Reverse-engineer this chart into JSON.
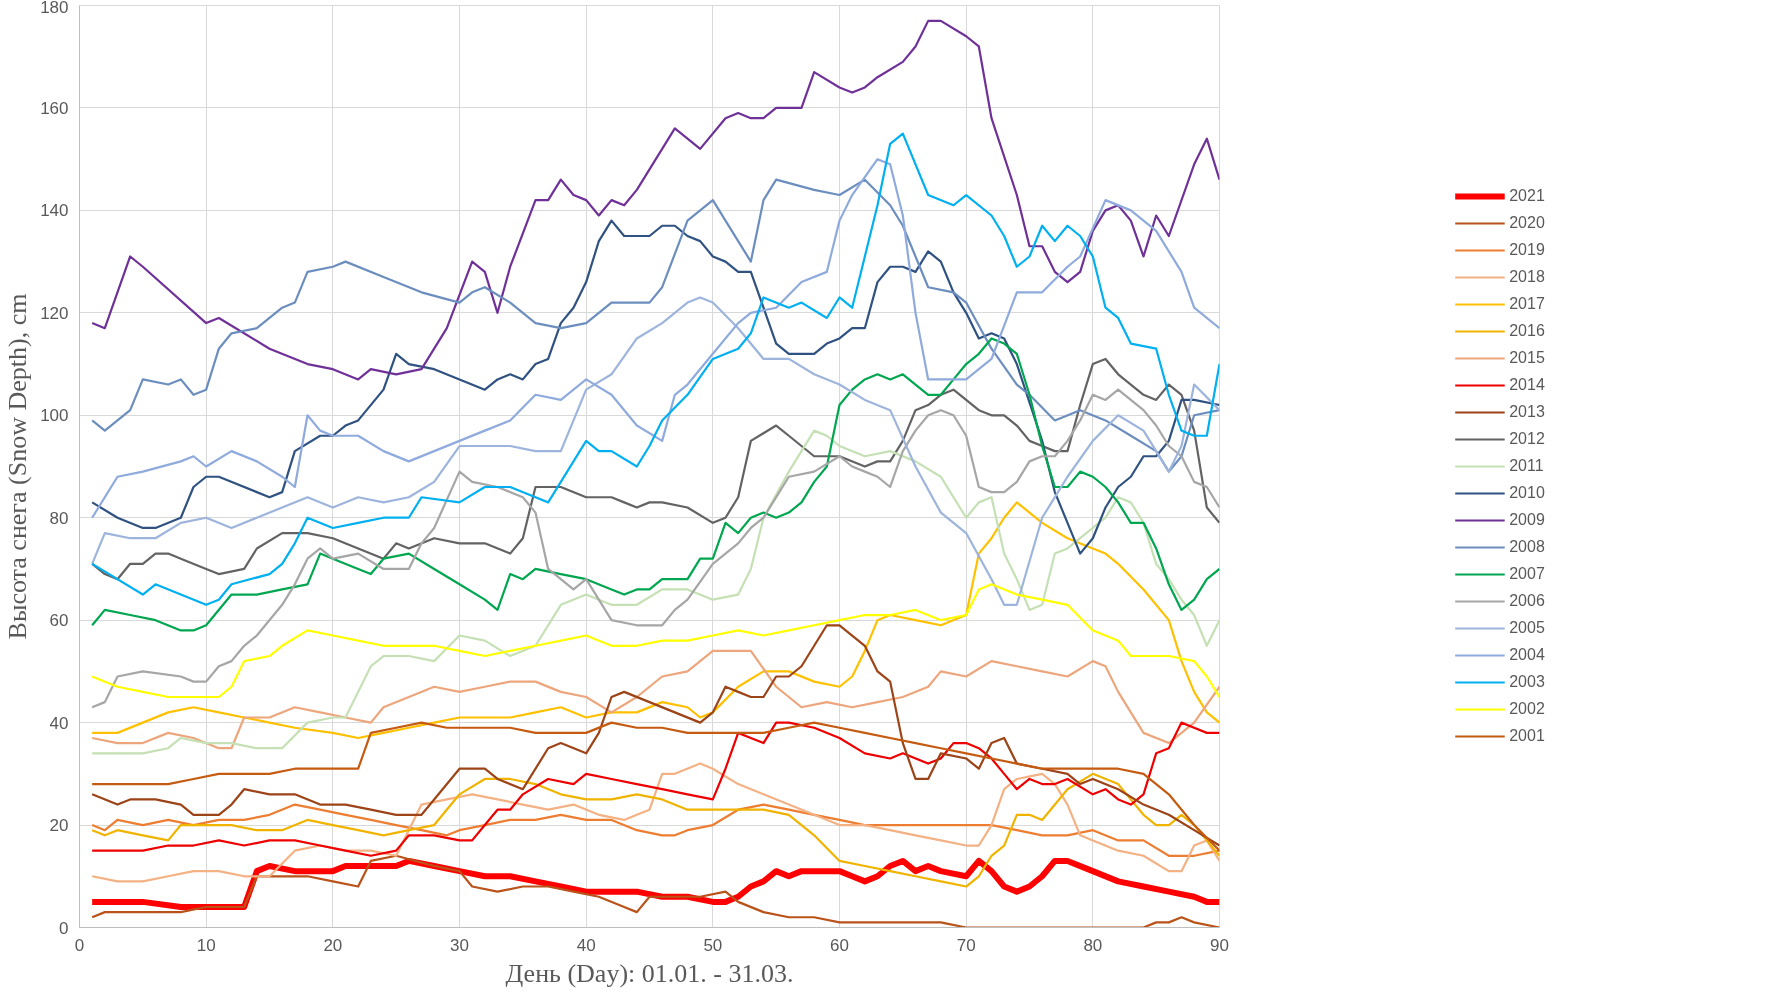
{
  "chart_data": {
    "type": "line",
    "xlabel": "День (Day): 01.01. - 31.03.",
    "ylabel": "Высота снега (Snow Depth), cm",
    "xlim": [
      0,
      90
    ],
    "ylim": [
      0,
      180
    ],
    "xticks": [
      0,
      10,
      20,
      30,
      40,
      50,
      60,
      70,
      80,
      90
    ],
    "yticks": [
      0,
      20,
      40,
      60,
      80,
      100,
      120,
      140,
      160,
      180
    ],
    "grid": true,
    "legend": "right",
    "series": [
      {
        "name": "2021",
        "color": "#ff0000",
        "x": [
          1,
          5,
          8,
          10,
          12,
          13,
          14,
          15,
          17,
          19,
          20,
          21,
          23,
          25,
          26,
          28,
          30,
          32,
          34,
          36,
          38,
          40,
          42,
          44,
          46,
          48,
          50,
          51,
          52,
          53,
          54,
          55,
          56,
          57,
          58,
          59,
          60,
          61,
          62,
          63,
          64,
          65,
          66,
          67,
          68,
          70,
          71,
          72,
          73,
          74,
          75,
          76,
          77,
          78,
          80,
          82,
          84,
          86,
          88,
          89,
          90
        ],
        "values": [
          5,
          5,
          4,
          4,
          4,
          4,
          11,
          12,
          11,
          11,
          11,
          12,
          12,
          12,
          13,
          12,
          11,
          10,
          10,
          9,
          8,
          7,
          7,
          7,
          6,
          6,
          5,
          5,
          6,
          8,
          9,
          11,
          10,
          11,
          11,
          11,
          11,
          10,
          9,
          10,
          12,
          13,
          11,
          12,
          11,
          10,
          13,
          11,
          8,
          7,
          8,
          10,
          13,
          13,
          11,
          9,
          8,
          7,
          6,
          5,
          5
        ]
      },
      {
        "name": "2020",
        "color": "#b9531a",
        "x": [
          1,
          2,
          4,
          6,
          8,
          10,
          12,
          13,
          14,
          16,
          18,
          20,
          22,
          23,
          25,
          28,
          30,
          31,
          33,
          35,
          37,
          39,
          41,
          43,
          44,
          45,
          47,
          49,
          51,
          52,
          54,
          56,
          58,
          60,
          62,
          64,
          66,
          68,
          70,
          74,
          78,
          82,
          84,
          85,
          86,
          87,
          88,
          90
        ],
        "values": [
          2,
          3,
          3,
          3,
          3,
          4,
          4,
          4,
          10,
          10,
          10,
          9,
          8,
          13,
          14,
          12,
          11,
          8,
          7,
          8,
          8,
          7,
          6,
          4,
          3,
          6,
          6,
          6,
          7,
          5,
          3,
          2,
          2,
          1,
          1,
          1,
          1,
          1,
          0,
          0,
          0,
          0,
          0,
          1,
          1,
          2,
          1,
          0
        ]
      },
      {
        "name": "2019",
        "color": "#ed7d31",
        "x": [
          1,
          2,
          3,
          5,
          7,
          9,
          11,
          13,
          15,
          17,
          19,
          21,
          23,
          25,
          27,
          29,
          30,
          32,
          34,
          36,
          38,
          40,
          42,
          44,
          46,
          47,
          48,
          50,
          52,
          54,
          56,
          58,
          60,
          62,
          64,
          66,
          68,
          70,
          72,
          74,
          76,
          78,
          80,
          82,
          84,
          86,
          88,
          90
        ],
        "values": [
          20,
          19,
          21,
          20,
          21,
          20,
          21,
          21,
          22,
          24,
          23,
          22,
          21,
          20,
          19,
          18,
          19,
          20,
          21,
          21,
          22,
          21,
          21,
          19,
          18,
          18,
          19,
          20,
          23,
          24,
          23,
          22,
          21,
          20,
          20,
          20,
          20,
          20,
          20,
          19,
          18,
          18,
          19,
          17,
          17,
          14,
          14,
          15
        ]
      },
      {
        "name": "2018",
        "color": "#f4b183",
        "x": [
          1,
          3,
          5,
          7,
          9,
          11,
          13,
          15,
          17,
          19,
          21,
          23,
          25,
          27,
          29,
          31,
          33,
          35,
          37,
          39,
          41,
          43,
          44,
          45,
          46,
          47,
          49,
          50,
          52,
          54,
          56,
          58,
          60,
          62,
          64,
          66,
          68,
          70,
          71,
          72,
          73,
          74,
          76,
          77,
          78,
          79,
          80,
          82,
          84,
          86,
          87,
          88,
          89,
          90
        ],
        "values": [
          10,
          9,
          9,
          10,
          11,
          11,
          10,
          10,
          15,
          16,
          15,
          15,
          14,
          24,
          25,
          26,
          25,
          24,
          23,
          24,
          22,
          21,
          22,
          23,
          30,
          30,
          32,
          31,
          28,
          26,
          24,
          22,
          20,
          20,
          19,
          18,
          17,
          16,
          16,
          20,
          27,
          29,
          30,
          28,
          24,
          18,
          17,
          15,
          14,
          11,
          11,
          16,
          17,
          13
        ]
      },
      {
        "name": "2017",
        "color": "#ffc000",
        "x": [
          1,
          3,
          5,
          7,
          9,
          11,
          13,
          15,
          17,
          20,
          22,
          24,
          26,
          28,
          30,
          32,
          34,
          36,
          38,
          40,
          42,
          44,
          46,
          48,
          49,
          50,
          52,
          54,
          56,
          58,
          60,
          61,
          62,
          63,
          64,
          66,
          68,
          70,
          71,
          72,
          73,
          74,
          75,
          76,
          78,
          80,
          81,
          82,
          84,
          86,
          87,
          88,
          89,
          90
        ],
        "values": [
          38,
          38,
          40,
          42,
          43,
          42,
          41,
          40,
          39,
          38,
          37,
          38,
          39,
          40,
          41,
          41,
          41,
          42,
          43,
          41,
          42,
          42,
          44,
          43,
          41,
          42,
          47,
          50,
          50,
          48,
          47,
          49,
          54,
          60,
          61,
          60,
          59,
          61,
          73,
          76,
          80,
          83,
          81,
          79,
          76,
          74,
          73,
          71,
          66,
          60,
          52,
          46,
          42,
          40
        ]
      },
      {
        "name": "2016",
        "color": "#f0b400",
        "x": [
          1,
          2,
          3,
          5,
          7,
          8,
          10,
          12,
          14,
          16,
          18,
          20,
          22,
          24,
          26,
          28,
          30,
          32,
          34,
          36,
          38,
          40,
          42,
          44,
          46,
          48,
          50,
          52,
          54,
          56,
          58,
          60,
          62,
          64,
          66,
          68,
          70,
          71,
          72,
          73,
          74,
          75,
          76,
          78,
          80,
          82,
          84,
          85,
          86,
          87,
          88,
          90
        ],
        "values": [
          19,
          18,
          19,
          18,
          17,
          20,
          20,
          20,
          19,
          19,
          21,
          20,
          19,
          18,
          19,
          20,
          26,
          29,
          29,
          28,
          26,
          25,
          25,
          26,
          25,
          23,
          23,
          23,
          23,
          22,
          18,
          13,
          12,
          11,
          10,
          9,
          8,
          10,
          14,
          16,
          22,
          22,
          21,
          27,
          30,
          28,
          22,
          20,
          20,
          22,
          20,
          14
        ]
      },
      {
        "name": "2015",
        "color": "#eda57c",
        "x": [
          1,
          3,
          5,
          7,
          9,
          11,
          12,
          13,
          15,
          17,
          19,
          21,
          23,
          24,
          26,
          28,
          30,
          32,
          34,
          36,
          38,
          40,
          42,
          44,
          46,
          48,
          50,
          52,
          53,
          55,
          57,
          59,
          61,
          63,
          65,
          67,
          68,
          70,
          72,
          74,
          76,
          78,
          80,
          81,
          82,
          83,
          84,
          86,
          88,
          90
        ],
        "values": [
          37,
          36,
          36,
          38,
          37,
          35,
          35,
          41,
          41,
          43,
          42,
          41,
          40,
          43,
          45,
          47,
          46,
          47,
          48,
          48,
          46,
          45,
          42,
          45,
          49,
          50,
          54,
          54,
          54,
          47,
          43,
          44,
          43,
          44,
          45,
          47,
          50,
          49,
          52,
          51,
          50,
          49,
          52,
          51,
          46,
          42,
          38,
          36,
          40,
          47
        ]
      },
      {
        "name": "2014",
        "color": "#ee0000",
        "x": [
          1,
          3,
          5,
          7,
          9,
          11,
          13,
          15,
          17,
          19,
          21,
          23,
          25,
          26,
          28,
          30,
          31,
          32,
          33,
          34,
          35,
          37,
          39,
          40,
          42,
          44,
          46,
          48,
          50,
          51,
          52,
          53,
          54,
          55,
          56,
          58,
          60,
          62,
          64,
          65,
          67,
          68,
          69,
          70,
          71,
          72,
          73,
          74,
          75,
          76,
          77,
          78,
          80,
          81,
          82,
          83,
          84,
          85,
          86,
          87,
          88,
          89,
          90
        ],
        "values": [
          15,
          15,
          15,
          16,
          16,
          17,
          16,
          17,
          17,
          16,
          15,
          14,
          15,
          18,
          18,
          17,
          17,
          20,
          23,
          23,
          26,
          29,
          28,
          30,
          29,
          28,
          27,
          26,
          25,
          31,
          38,
          37,
          36,
          40,
          40,
          39,
          37,
          34,
          33,
          34,
          32,
          33,
          36,
          36,
          35,
          33,
          30,
          27,
          29,
          28,
          28,
          29,
          26,
          27,
          25,
          24,
          26,
          34,
          35,
          40,
          39,
          38,
          38
        ]
      },
      {
        "name": "2013",
        "color": "#9c4418",
        "x": [
          1,
          3,
          4,
          6,
          8,
          9,
          11,
          12,
          13,
          15,
          17,
          19,
          21,
          23,
          25,
          27,
          28,
          30,
          32,
          33,
          35,
          37,
          38,
          40,
          41,
          42,
          43,
          45,
          47,
          49,
          50,
          51,
          52,
          53,
          54,
          55,
          56,
          57,
          58,
          59,
          60,
          61,
          62,
          63,
          64,
          65,
          66,
          67,
          68,
          70,
          71,
          72,
          73,
          74,
          76,
          78,
          79,
          80,
          82,
          84,
          86,
          88,
          90
        ],
        "values": [
          26,
          24,
          25,
          25,
          24,
          22,
          22,
          24,
          27,
          26,
          26,
          24,
          24,
          23,
          22,
          22,
          25,
          31,
          31,
          29,
          27,
          35,
          36,
          34,
          38,
          45,
          46,
          44,
          42,
          40,
          42,
          47,
          46,
          45,
          45,
          49,
          49,
          51,
          55,
          59,
          59,
          57,
          55,
          50,
          48,
          36,
          29,
          29,
          34,
          33,
          31,
          36,
          37,
          32,
          31,
          30,
          28,
          29,
          27,
          24,
          22,
          19,
          16
        ]
      },
      {
        "name": "2012",
        "color": "#636363",
        "x": [
          1,
          2,
          3,
          4,
          5,
          6,
          7,
          8,
          10,
          11,
          13,
          14,
          16,
          18,
          20,
          22,
          24,
          25,
          26,
          28,
          30,
          32,
          34,
          35,
          36,
          38,
          40,
          42,
          43,
          44,
          45,
          46,
          48,
          50,
          51,
          52,
          53,
          55,
          56,
          57,
          58,
          60,
          62,
          63,
          64,
          65,
          66,
          67,
          68,
          69,
          70,
          71,
          72,
          73,
          74,
          75,
          76,
          77,
          78,
          79,
          80,
          81,
          82,
          83,
          84,
          85,
          86,
          87,
          88,
          89,
          90
        ],
        "values": [
          71,
          69,
          68,
          71,
          71,
          73,
          73,
          72,
          70,
          69,
          70,
          74,
          77,
          77,
          76,
          74,
          72,
          75,
          74,
          76,
          75,
          75,
          73,
          76,
          86,
          86,
          84,
          84,
          83,
          82,
          83,
          83,
          82,
          79,
          80,
          84,
          95,
          98,
          96,
          94,
          92,
          92,
          90,
          91,
          91,
          95,
          101,
          102,
          104,
          105,
          103,
          101,
          100,
          100,
          98,
          95,
          94,
          93,
          93,
          102,
          110,
          111,
          108,
          106,
          104,
          103,
          106,
          104,
          97,
          82,
          79
        ]
      },
      {
        "name": "2011",
        "color": "#c5e0b4",
        "x": [
          1,
          3,
          5,
          7,
          8,
          10,
          12,
          14,
          16,
          18,
          20,
          21,
          22,
          23,
          24,
          26,
          28,
          30,
          32,
          34,
          36,
          38,
          40,
          41,
          42,
          44,
          46,
          48,
          50,
          52,
          53,
          54,
          56,
          58,
          59,
          60,
          62,
          64,
          66,
          68,
          70,
          71,
          72,
          73,
          74,
          75,
          76,
          77,
          78,
          79,
          80,
          81,
          82,
          83,
          84,
          85,
          86,
          87,
          88,
          89,
          90
        ],
        "values": [
          34,
          34,
          34,
          35,
          37,
          36,
          36,
          35,
          35,
          40,
          41,
          41,
          46,
          51,
          53,
          53,
          52,
          57,
          56,
          53,
          55,
          63,
          65,
          64,
          63,
          63,
          66,
          66,
          64,
          65,
          70,
          80,
          89,
          97,
          96,
          94,
          92,
          93,
          91,
          88,
          80,
          83,
          84,
          73,
          68,
          62,
          63,
          73,
          74,
          76,
          78,
          80,
          84,
          83,
          79,
          71,
          68,
          64,
          61,
          55,
          60
        ]
      },
      {
        "name": "2010",
        "color": "#2f5281",
        "x": [
          1,
          3,
          5,
          6,
          8,
          9,
          10,
          11,
          14,
          15,
          16,
          17,
          19,
          20,
          21,
          22,
          24,
          25,
          26,
          28,
          30,
          32,
          33,
          34,
          35,
          36,
          37,
          38,
          39,
          40,
          41,
          42,
          43,
          45,
          46,
          47,
          48,
          49,
          50,
          51,
          52,
          53,
          54,
          55,
          56,
          58,
          59,
          60,
          61,
          62,
          63,
          64,
          65,
          66,
          67,
          68,
          69,
          70,
          71,
          72,
          73,
          74,
          76,
          77,
          78,
          79,
          80,
          81,
          82,
          83,
          84,
          85,
          86,
          87,
          88,
          90
        ],
        "values": [
          83,
          80,
          78,
          78,
          80,
          86,
          88,
          88,
          85,
          84,
          85,
          93,
          96,
          96,
          98,
          99,
          105,
          112,
          110,
          109,
          107,
          105,
          107,
          108,
          107,
          110,
          111,
          118,
          121,
          126,
          134,
          138,
          135,
          135,
          137,
          137,
          135,
          134,
          131,
          130,
          128,
          128,
          121,
          114,
          112,
          112,
          114,
          115,
          117,
          117,
          126,
          129,
          129,
          128,
          132,
          130,
          124,
          120,
          115,
          116,
          115,
          110,
          95,
          85,
          79,
          73,
          76,
          82,
          86,
          88,
          92,
          92,
          95,
          103,
          103,
          102
        ]
      },
      {
        "name": "2009",
        "color": "#6f3198",
        "x": [
          1,
          2,
          4,
          5,
          10,
          11,
          15,
          18,
          20,
          22,
          23,
          25,
          27,
          29,
          31,
          32,
          33,
          34,
          36,
          37,
          38,
          39,
          40,
          41,
          42,
          43,
          44,
          46,
          47,
          49,
          51,
          52,
          53,
          54,
          55,
          57,
          58,
          60,
          61,
          62,
          63,
          65,
          66,
          67,
          68,
          70,
          71,
          72,
          74,
          75,
          76,
          77,
          78,
          79,
          80,
          81,
          82,
          83,
          84,
          85,
          86,
          88,
          89,
          90
        ],
        "values": [
          118,
          117,
          131,
          129,
          118,
          119,
          113,
          110,
          109,
          107,
          109,
          108,
          109,
          117,
          130,
          128,
          120,
          129,
          142,
          142,
          146,
          143,
          142,
          139,
          142,
          141,
          144,
          152,
          156,
          152,
          158,
          159,
          158,
          158,
          160,
          160,
          167,
          164,
          163,
          164,
          166,
          169,
          172,
          177,
          177,
          174,
          172,
          158,
          143,
          133,
          133,
          128,
          126,
          128,
          136,
          140,
          141,
          138,
          131,
          139,
          135,
          149,
          154,
          146
        ]
      },
      {
        "name": "2008",
        "color": "#6c8ebf",
        "x": [
          1,
          2,
          4,
          5,
          7,
          8,
          9,
          10,
          11,
          12,
          14,
          16,
          17,
          18,
          20,
          21,
          24,
          27,
          30,
          31,
          32,
          34,
          36,
          38,
          40,
          42,
          45,
          46,
          48,
          50,
          52,
          53,
          54,
          55,
          58,
          60,
          62,
          64,
          65,
          67,
          69,
          70,
          72,
          74,
          75,
          77,
          79,
          81,
          83,
          85,
          86,
          87,
          88,
          90
        ],
        "values": [
          99,
          97,
          101,
          107,
          106,
          107,
          104,
          105,
          113,
          116,
          117,
          121,
          122,
          128,
          129,
          130,
          127,
          124,
          122,
          124,
          125,
          122,
          118,
          117,
          118,
          122,
          122,
          125,
          138,
          142,
          134,
          130,
          142,
          146,
          144,
          143,
          146,
          141,
          137,
          125,
          124,
          122,
          113,
          106,
          104,
          99,
          101,
          99,
          96,
          93,
          89,
          92,
          100,
          101
        ]
      },
      {
        "name": "2007",
        "color": "#00a650",
        "x": [
          1,
          2,
          4,
          6,
          8,
          9,
          10,
          12,
          14,
          16,
          18,
          19,
          20,
          22,
          23,
          24,
          26,
          28,
          30,
          32,
          33,
          34,
          35,
          36,
          38,
          40,
          42,
          43,
          44,
          45,
          46,
          48,
          49,
          50,
          51,
          52,
          53,
          54,
          55,
          56,
          57,
          58,
          59,
          60,
          61,
          62,
          63,
          64,
          65,
          66,
          67,
          68,
          69,
          70,
          71,
          72,
          73,
          74,
          75,
          76,
          77,
          78,
          79,
          80,
          81,
          82,
          83,
          84,
          85,
          86,
          87,
          88,
          89,
          90
        ],
        "values": [
          59,
          62,
          61,
          60,
          58,
          58,
          59,
          65,
          65,
          66,
          67,
          73,
          72,
          70,
          69,
          72,
          73,
          70,
          67,
          64,
          62,
          69,
          68,
          70,
          69,
          68,
          66,
          65,
          66,
          66,
          68,
          68,
          72,
          72,
          79,
          77,
          80,
          81,
          80,
          81,
          83,
          87,
          90,
          102,
          105,
          107,
          108,
          107,
          108,
          106,
          104,
          104,
          107,
          110,
          112,
          115,
          114,
          112,
          104,
          94,
          86,
          86,
          89,
          88,
          86,
          83,
          79,
          79,
          74,
          67,
          62,
          64,
          68,
          70
        ]
      },
      {
        "name": "2006",
        "color": "#a6a6a6",
        "x": [
          1,
          2,
          3,
          5,
          8,
          9,
          10,
          11,
          12,
          13,
          14,
          16,
          17,
          18,
          19,
          20,
          22,
          24,
          26,
          27,
          28,
          30,
          31,
          33,
          35,
          36,
          37,
          38,
          39,
          40,
          42,
          44,
          46,
          47,
          48,
          50,
          51,
          52,
          53,
          54,
          56,
          58,
          60,
          61,
          62,
          63,
          64,
          65,
          66,
          67,
          68,
          69,
          70,
          71,
          72,
          73,
          74,
          75,
          76,
          77,
          78,
          79,
          80,
          81,
          82,
          83,
          84,
          85,
          86,
          87,
          88,
          89,
          90
        ],
        "values": [
          43,
          44,
          49,
          50,
          49,
          48,
          48,
          51,
          52,
          55,
          57,
          63,
          67,
          72,
          74,
          72,
          73,
          70,
          70,
          75,
          78,
          89,
          87,
          86,
          84,
          81,
          70,
          68,
          66,
          68,
          60,
          59,
          59,
          62,
          64,
          71,
          73,
          75,
          78,
          80,
          88,
          89,
          92,
          90,
          89,
          88,
          86,
          93,
          97,
          100,
          101,
          100,
          96,
          86,
          85,
          85,
          87,
          91,
          92,
          92,
          95,
          99,
          104,
          103,
          105,
          103,
          101,
          98,
          94,
          92,
          87,
          86,
          82
        ]
      },
      {
        "name": "2005",
        "color": "#9db4dd",
        "x": [
          1,
          2,
          4,
          6,
          8,
          10,
          12,
          14,
          16,
          18,
          20,
          22,
          24,
          26,
          28,
          30,
          32,
          34,
          36,
          38,
          40,
          42,
          44,
          46,
          48,
          49,
          50,
          52,
          54,
          56,
          58,
          60,
          62,
          64,
          66,
          68,
          70,
          72,
          73,
          74,
          76,
          78,
          80,
          82,
          84,
          86,
          87,
          88,
          90
        ],
        "values": [
          71,
          77,
          76,
          76,
          79,
          80,
          78,
          80,
          82,
          84,
          82,
          84,
          83,
          84,
          87,
          94,
          94,
          94,
          93,
          93,
          105,
          108,
          115,
          118,
          122,
          123,
          122,
          117,
          111,
          111,
          108,
          106,
          103,
          101,
          90,
          81,
          77,
          68,
          63,
          63,
          80,
          88,
          95,
          100,
          97,
          89,
          94,
          106,
          101
        ]
      },
      {
        "name": "2004",
        "color": "#8faadc",
        "x": [
          1,
          3,
          5,
          8,
          9,
          10,
          12,
          14,
          16,
          17,
          18,
          19,
          20,
          22,
          24,
          26,
          28,
          30,
          32,
          34,
          36,
          38,
          40,
          42,
          44,
          46,
          47,
          48,
          50,
          52,
          53,
          55,
          57,
          59,
          60,
          61,
          63,
          64,
          65,
          66,
          67,
          70,
          72,
          74,
          76,
          78,
          79,
          81,
          83,
          85,
          87,
          88,
          90
        ],
        "values": [
          80,
          88,
          89,
          91,
          92,
          90,
          93,
          91,
          88,
          86,
          100,
          97,
          96,
          96,
          93,
          91,
          93,
          95,
          97,
          99,
          104,
          103,
          107,
          104,
          98,
          95,
          104,
          106,
          112,
          118,
          120,
          121,
          126,
          128,
          138,
          143,
          150,
          149,
          139,
          120,
          107,
          107,
          111,
          124,
          124,
          129,
          131,
          142,
          140,
          136,
          128,
          121,
          117
        ]
      },
      {
        "name": "2003",
        "color": "#00b0f0",
        "x": [
          1,
          5,
          6,
          10,
          11,
          12,
          15,
          16,
          17,
          18,
          20,
          22,
          24,
          26,
          27,
          30,
          32,
          34,
          36,
          37,
          39,
          40,
          41,
          42,
          44,
          45,
          46,
          48,
          50,
          52,
          53,
          54,
          56,
          57,
          59,
          60,
          61,
          62,
          63,
          64,
          65,
          67,
          69,
          70,
          72,
          73,
          74,
          75,
          76,
          77,
          78,
          79,
          80,
          81,
          82,
          83,
          85,
          86,
          87,
          88,
          89,
          90
        ],
        "values": [
          71,
          65,
          67,
          63,
          64,
          67,
          69,
          71,
          75,
          80,
          78,
          79,
          80,
          80,
          84,
          83,
          86,
          86,
          84,
          83,
          91,
          95,
          93,
          93,
          90,
          94,
          99,
          104,
          111,
          113,
          116,
          123,
          121,
          122,
          119,
          123,
          121,
          131,
          141,
          153,
          155,
          143,
          141,
          143,
          139,
          135,
          129,
          131,
          137,
          134,
          137,
          135,
          131,
          121,
          119,
          114,
          113,
          104,
          97,
          96,
          96,
          110
        ]
      },
      {
        "name": "2002",
        "color": "#ffff00",
        "x": [
          1,
          3,
          5,
          7,
          9,
          11,
          12,
          13,
          15,
          16,
          18,
          20,
          22,
          24,
          26,
          28,
          30,
          32,
          34,
          36,
          38,
          40,
          42,
          44,
          46,
          48,
          50,
          52,
          54,
          56,
          58,
          60,
          62,
          64,
          66,
          68,
          70,
          71,
          72,
          74,
          76,
          78,
          80,
          81,
          82,
          83,
          84,
          86,
          88,
          89,
          90
        ],
        "values": [
          49,
          47,
          46,
          45,
          45,
          45,
          47,
          52,
          53,
          55,
          58,
          57,
          56,
          55,
          55,
          55,
          54,
          53,
          54,
          55,
          56,
          57,
          55,
          55,
          56,
          56,
          57,
          58,
          57,
          58,
          59,
          60,
          61,
          61,
          62,
          60,
          61,
          66,
          67,
          65,
          64,
          63,
          58,
          57,
          56,
          53,
          53,
          53,
          52,
          49,
          45
        ]
      },
      {
        "name": "2001",
        "color": "#c55a11",
        "x": [
          1,
          3,
          5,
          7,
          9,
          11,
          13,
          15,
          17,
          19,
          21,
          22,
          23,
          25,
          27,
          29,
          30,
          32,
          34,
          36,
          38,
          40,
          42,
          44,
          46,
          48,
          50,
          52,
          54,
          56,
          58,
          60,
          62,
          64,
          66,
          68,
          70,
          72,
          74,
          76,
          78,
          80,
          82,
          84,
          86,
          88,
          90
        ],
        "values": [
          28,
          28,
          28,
          28,
          29,
          30,
          30,
          30,
          31,
          31,
          31,
          31,
          38,
          39,
          40,
          39,
          39,
          39,
          39,
          38,
          38,
          38,
          40,
          39,
          39,
          38,
          38,
          38,
          38,
          39,
          40,
          39,
          38,
          37,
          36,
          35,
          34,
          33,
          32,
          31,
          31,
          31,
          31,
          30,
          26,
          20,
          15
        ]
      }
    ]
  }
}
